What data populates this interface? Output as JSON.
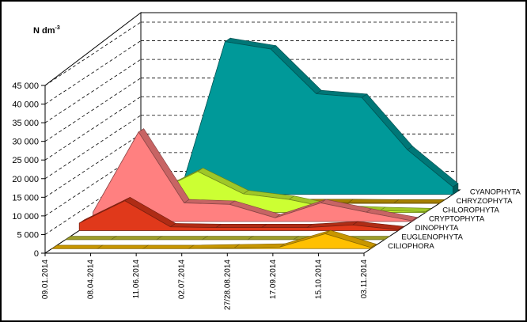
{
  "chart_data": {
    "type": "area",
    "style": "3d-stacked-depth",
    "ylabel": "N dm",
    "ylabel_superscript": "-3",
    "ylim": [
      0,
      45000
    ],
    "yticks": [
      "0",
      "5 000",
      "10 000",
      "15 000",
      "20 000",
      "25 000",
      "30 000",
      "35 000",
      "40 000",
      "45 000"
    ],
    "categories": [
      "09.01.2014",
      "08.04.2014",
      "11.06.2014",
      "02.07.2014",
      "27/28.08.2014",
      "17.09.2014",
      "15.10.2014",
      "03.11.2014"
    ],
    "gridlines": true,
    "series": [
      {
        "name": "CILIOPHORA",
        "color": "#FFC000",
        "values": [
          0,
          0,
          0,
          0,
          200,
          400,
          4000,
          300
        ]
      },
      {
        "name": "EUGLENOPHYTA",
        "color": "#C9C934",
        "values": [
          0,
          0,
          0,
          0,
          0,
          0,
          0,
          0
        ]
      },
      {
        "name": "DINOPHYTA",
        "color": "#E0391B",
        "values": [
          2000,
          8000,
          1000,
          800,
          800,
          800,
          1500,
          200
        ]
      },
      {
        "name": "CRYPTOPHYTA",
        "color": "#FF8080",
        "values": [
          2500,
          24000,
          5000,
          4600,
          1000,
          5000,
          2500,
          200
        ]
      },
      {
        "name": "CHLOROPHYTA",
        "color": "#CCFF33",
        "values": [
          0,
          5000,
          11000,
          5000,
          3500,
          1000,
          500,
          200
        ]
      },
      {
        "name": "CHRYZOPHYTA",
        "color": "#D4A400",
        "values": [
          0,
          6000,
          1000,
          400,
          200,
          200,
          100,
          100
        ]
      },
      {
        "name": "CYANOPHYTA",
        "color": "#009999",
        "values": [
          0,
          0,
          41000,
          39000,
          27000,
          26000,
          12000,
          2000
        ]
      }
    ]
  }
}
